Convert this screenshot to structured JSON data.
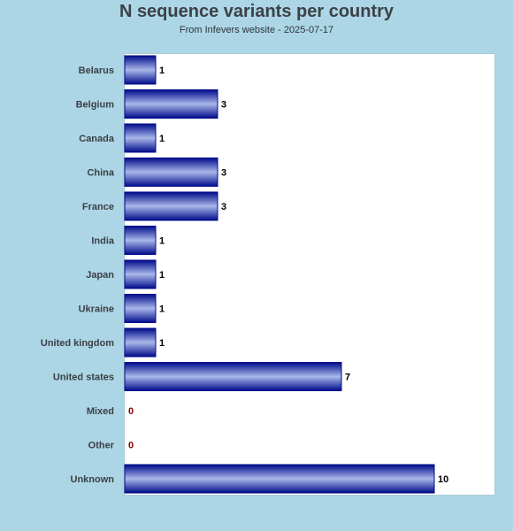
{
  "chart_data": {
    "type": "bar",
    "orientation": "horizontal",
    "title": "N sequence variants per country",
    "subtitle": "From Infevers website - 2025-07-17",
    "categories": [
      "Belarus",
      "Belgium",
      "Canada",
      "China",
      "France",
      "India",
      "Japan",
      "Ukraine",
      "United kingdom",
      "United states",
      "Mixed",
      "Other",
      "Unknown"
    ],
    "values": [
      1,
      3,
      1,
      3,
      3,
      1,
      1,
      1,
      1,
      7,
      0,
      0,
      10
    ],
    "xlim": [
      0,
      12
    ],
    "grid": false,
    "colors": {
      "bar_edge": "#000b8a",
      "bar_center": "#a9b7ea",
      "value_label": "#000000",
      "zero_label": "#8b0000",
      "background": "#acd6e6",
      "plot_background": "#ffffff"
    }
  }
}
